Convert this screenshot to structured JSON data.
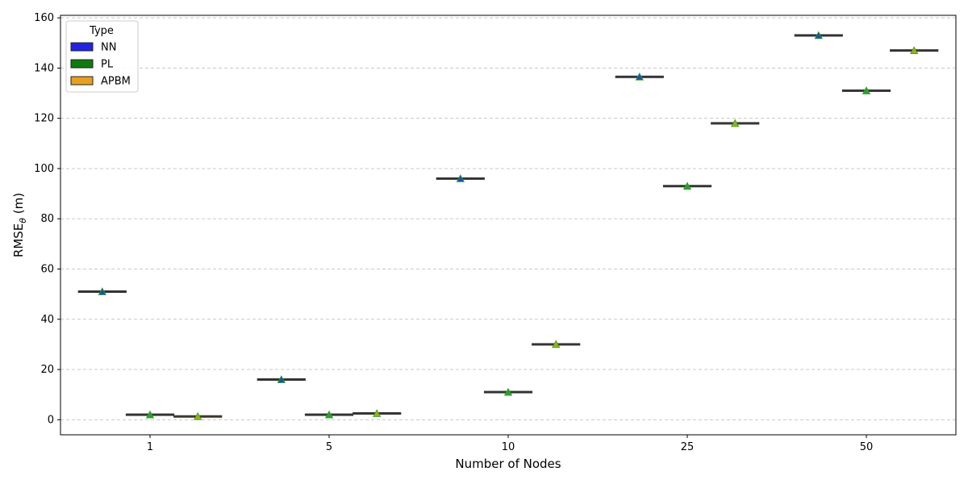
{
  "chart_data": {
    "type": "box",
    "categories": [
      "1",
      "5",
      "10",
      "25",
      "50"
    ],
    "xlabel": "Number of Nodes",
    "ylabel_main": "RMSE",
    "ylabel_sub": "θ",
    "ylabel_unit": " (m)",
    "ylim": [
      -6,
      161
    ],
    "yticks": [
      0,
      20,
      40,
      60,
      80,
      100,
      120,
      140,
      160
    ],
    "grid": "y-dashed",
    "legend": {
      "title": "Type",
      "placement": "top-left"
    },
    "series": [
      {
        "name": "NN",
        "color": "#2424e0",
        "mean_marker_color": "#1f4fb0",
        "values": [
          51,
          16,
          96,
          136.5,
          153
        ]
      },
      {
        "name": "PL",
        "color": "#0f7a0f",
        "mean_marker_color": "#2ca02c",
        "values": [
          2,
          2,
          11,
          93,
          131
        ]
      },
      {
        "name": "APBM",
        "color": "#e8a020",
        "mean_marker_color": "#9cb010",
        "values": [
          1.3,
          2.5,
          30,
          118,
          147
        ]
      }
    ],
    "mean_marker_color": "#2ca02c"
  }
}
